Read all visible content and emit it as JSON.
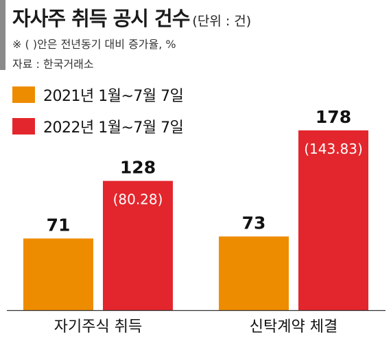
{
  "header": {
    "title": "자사주 취득 공시 건수",
    "unit": "(단위 : 건)",
    "note": "※ (  )안은 전년동기 대비 증가율, %",
    "source": "자료 : 한국거래소"
  },
  "chart_data": {
    "type": "bar",
    "categories": [
      "자기주식 취득",
      "신탁계약 체결"
    ],
    "series": [
      {
        "name": "2021년 1월~7월 7일",
        "values": [
          71,
          73
        ],
        "color": "#ee8c00",
        "growth_labels": [
          "",
          ""
        ]
      },
      {
        "name": "2022년 1월~7월 7일",
        "values": [
          128,
          178
        ],
        "color": "#e3262d",
        "growth_labels": [
          "(80.28)",
          "(143.83)"
        ]
      }
    ],
    "ylim": [
      0,
      178
    ],
    "grid": false,
    "legend_position": "top-left"
  }
}
